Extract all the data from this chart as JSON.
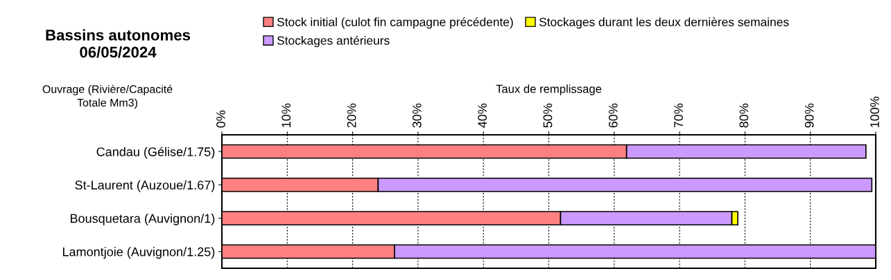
{
  "chart_data": {
    "type": "bar",
    "orientation": "horizontal",
    "stacked": true,
    "title": "Bassins autonomes\n06/05/2024",
    "xlabel": "Taux de remplissage",
    "ylabel": "Ouvrage (Rivière/Capacité\nTotale Mm3)",
    "categories": [
      "Candau (Gélise/1.75)",
      "St-Laurent (Auzoue/1.67)",
      "Bousquetara (Auvignon/1)",
      "Lamontjoie (Auvignon/1.25)"
    ],
    "series": [
      {
        "name": "Stock initial (culot fin campagne précédente)",
        "color": "#ff8080",
        "values": [
          61.9,
          23.9,
          51.8,
          26.4
        ]
      },
      {
        "name": "Stockages antérieurs",
        "color": "#cc99ff",
        "values": [
          36.6,
          75.5,
          26.2,
          73.6
        ]
      },
      {
        "name": "Stockages durant les deux dernières semaines",
        "color": "#ffff00",
        "values": [
          null,
          null,
          0.9,
          null
        ]
      }
    ],
    "xlim": [
      0,
      100
    ],
    "xticks": [
      {
        "value": 0,
        "label": "0%"
      },
      {
        "value": 10,
        "label": "10%"
      },
      {
        "value": 20,
        "label": "20%"
      },
      {
        "value": 30,
        "label": "30%"
      },
      {
        "value": 40,
        "label": "40%"
      },
      {
        "value": 50,
        "label": "50%"
      },
      {
        "value": 60,
        "label": "60%"
      },
      {
        "value": 70,
        "label": "70%"
      },
      {
        "value": 80,
        "label": "80%"
      },
      {
        "value": 90,
        "label": "90%"
      },
      {
        "value": 100,
        "label": "100%"
      }
    ],
    "grid": "x",
    "legend": "top"
  }
}
